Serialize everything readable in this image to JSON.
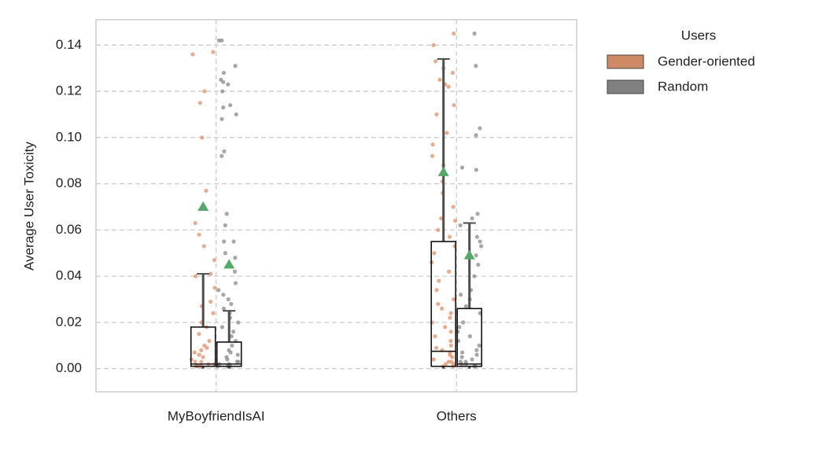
{
  "chart_data": {
    "type": "box",
    "y_label": "Average User Toxicity",
    "legend_title": "Users",
    "legend": "upper right outside",
    "grid": true,
    "categories": [
      "MyBoyfriendIsAI",
      "Others"
    ],
    "ylim": [
      -0.01,
      0.151
    ],
    "yticks": [
      {
        "value": 0,
        "label": "0.00"
      },
      {
        "value": 0.02,
        "label": "0.02"
      },
      {
        "value": 0.04,
        "label": "0.04"
      },
      {
        "value": 0.06,
        "label": "0.06"
      },
      {
        "value": 0.08,
        "label": "0.08"
      },
      {
        "value": 0.1,
        "label": "0.10"
      },
      {
        "value": 0.12,
        "label": "0.12"
      },
      {
        "value": 0.14,
        "label": "0.14"
      }
    ],
    "mean_color": "#55a868",
    "series": [
      {
        "name": "Gender-oriented",
        "color": "#cd8a65",
        "point_color": "#e0916a",
        "boxes": [
          {
            "whislo": 0,
            "q1": 0.001,
            "med": 0.002,
            "q3": 0.018,
            "whishi": 0.041,
            "mean": 0.07
          },
          {
            "whislo": 0,
            "q1": 0.001,
            "med": 0.0075,
            "q3": 0.055,
            "whishi": 0.134,
            "mean": 0.085
          }
        ],
        "points": [
          [
            0.137,
            0.136,
            0.12,
            0.115,
            0.1,
            0.077,
            0.063,
            0.058,
            0.053,
            0.047,
            0.041,
            0.04,
            0.035,
            0.029,
            0.027,
            0.024,
            0.02,
            0.018,
            0.015,
            0.012,
            0.01,
            0.009,
            0.008,
            0.007,
            0.006,
            0.005,
            0.004,
            0.003,
            0.003,
            0.002,
            0.002,
            0.001,
            0.001,
            0.001
          ],
          [
            0.145,
            0.14,
            0.133,
            0.13,
            0.128,
            0.125,
            0.123,
            0.122,
            0.114,
            0.11,
            0.102,
            0.097,
            0.092,
            0.088,
            0.081,
            0.076,
            0.07,
            0.065,
            0.064,
            0.06,
            0.057,
            0.053,
            0.05,
            0.046,
            0.042,
            0.038,
            0.034,
            0.03,
            0.028,
            0.026,
            0.024,
            0.022,
            0.02,
            0.018,
            0.016,
            0.014,
            0.012,
            0.01,
            0.009,
            0.008,
            0.007,
            0.006,
            0.005,
            0.004,
            0.003,
            0.003,
            0.002,
            0.002,
            0.001,
            0.001
          ]
        ]
      },
      {
        "name": "Random",
        "color": "#808080",
        "point_color": "#8a8a8a",
        "boxes": [
          {
            "whislo": 0,
            "q1": 0.001,
            "med": 0.002,
            "q3": 0.0115,
            "whishi": 0.025,
            "mean": 0.045
          },
          {
            "whislo": 0,
            "q1": 0.001,
            "med": 0.002,
            "q3": 0.026,
            "whishi": 0.063,
            "mean": 0.049
          }
        ],
        "points": [
          [
            0.142,
            0.142,
            0.131,
            0.128,
            0.125,
            0.124,
            0.123,
            0.12,
            0.114,
            0.113,
            0.11,
            0.108,
            0.094,
            0.092,
            0.067,
            0.062,
            0.055,
            0.055,
            0.05,
            0.048,
            0.042,
            0.037,
            0.034,
            0.032,
            0.03,
            0.028,
            0.026,
            0.024,
            0.022,
            0.02,
            0.018,
            0.016,
            0.014,
            0.012,
            0.01,
            0.008,
            0.007,
            0.006,
            0.005,
            0.004,
            0.003,
            0.003,
            0.002,
            0.002,
            0.001,
            0.001,
            0.001
          ],
          [
            0.145,
            0.131,
            0.104,
            0.101,
            0.087,
            0.086,
            0.067,
            0.065,
            0.062,
            0.057,
            0.055,
            0.053,
            0.049,
            0.045,
            0.04,
            0.034,
            0.032,
            0.03,
            0.027,
            0.024,
            0.02,
            0.018,
            0.016,
            0.014,
            0.012,
            0.01,
            0.008,
            0.007,
            0.006,
            0.005,
            0.004,
            0.003,
            0.003,
            0.002,
            0.002,
            0.001,
            0.001
          ]
        ]
      }
    ]
  }
}
